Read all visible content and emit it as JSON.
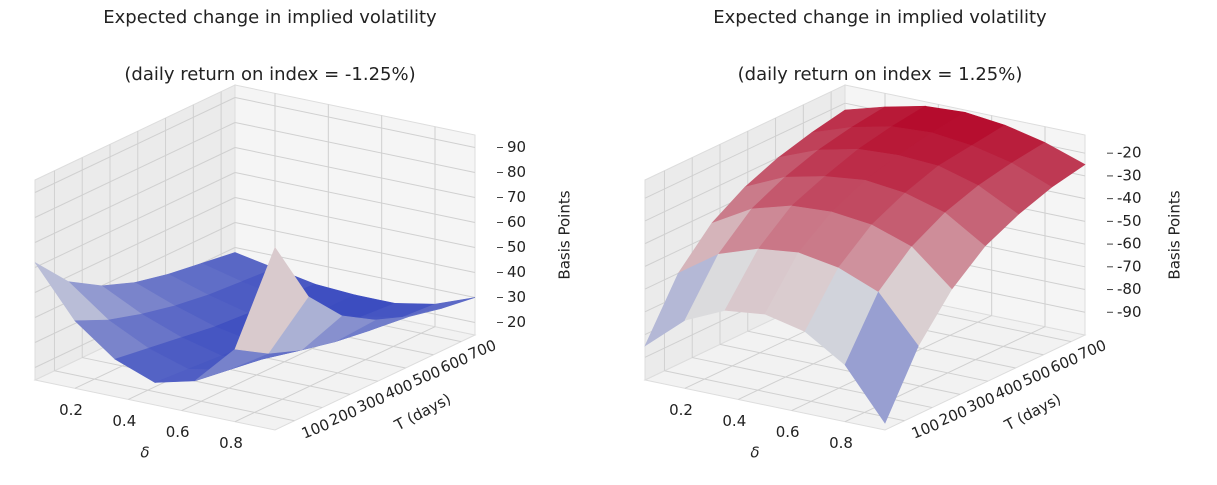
{
  "chart_data": [
    {
      "type": "surface3d",
      "title": "Expected change in implied volatility",
      "subtitle": "(daily return on index = -1.25%)",
      "xlabel": "δ",
      "ylabel": "T (days)",
      "zlabel": "Basis Points",
      "x": [
        0.05,
        0.2,
        0.35,
        0.5,
        0.65,
        0.8,
        0.95
      ],
      "y": [
        30,
        150,
        270,
        390,
        510,
        630,
        750
      ],
      "z": [
        [
          62,
          42,
          30,
          24,
          28,
          44,
          88
        ],
        [
          48,
          36,
          28,
          23,
          26,
          36,
          62
        ],
        [
          40,
          32,
          26,
          22,
          24,
          31,
          48
        ],
        [
          35,
          29,
          24,
          21,
          23,
          28,
          40
        ],
        [
          32,
          27,
          23,
          21,
          22,
          26,
          35
        ],
        [
          30,
          26,
          23,
          21,
          22,
          25,
          32
        ],
        [
          28,
          25,
          22,
          21,
          21,
          24,
          30
        ]
      ],
      "xlim": [
        0.05,
        0.95
      ],
      "ylim": [
        30,
        750
      ],
      "zlim": [
        15,
        95
      ],
      "xticks": [
        0.2,
        0.4,
        0.6,
        0.8
      ],
      "yticks": [
        100,
        200,
        300,
        400,
        500,
        600,
        700
      ],
      "zticks": [
        20,
        30,
        40,
        50,
        60,
        70,
        80,
        90
      ],
      "cmap": "coolwarm",
      "grid": true
    },
    {
      "type": "surface3d",
      "title": "Expected change in implied volatility",
      "subtitle": "(daily return on index = 1.25%)",
      "xlabel": "δ",
      "ylabel": "T (days)",
      "zlabel": "Basis Points",
      "x": [
        0.05,
        0.2,
        0.35,
        0.5,
        0.65,
        0.8,
        0.95
      ],
      "y": [
        30,
        150,
        270,
        390,
        510,
        630,
        750
      ],
      "z": [
        [
          -85,
          -70,
          -62,
          -60,
          -64,
          -75,
          -97
        ],
        [
          -60,
          -48,
          -42,
          -40,
          -43,
          -50,
          -70
        ],
        [
          -45,
          -35,
          -30,
          -29,
          -31,
          -37,
          -52
        ],
        [
          -36,
          -28,
          -24,
          -22,
          -24,
          -29,
          -40
        ],
        [
          -30,
          -23,
          -19,
          -18,
          -19,
          -24,
          -33
        ],
        [
          -26,
          -20,
          -16,
          -15,
          -17,
          -21,
          -28
        ],
        [
          -23,
          -18,
          -14,
          -13,
          -15,
          -19,
          -25
        ]
      ],
      "xlim": [
        0.05,
        0.95
      ],
      "ylim": [
        30,
        750
      ],
      "zlim": [
        -100,
        -12
      ],
      "xticks": [
        0.2,
        0.4,
        0.6,
        0.8
      ],
      "yticks": [
        100,
        200,
        300,
        400,
        500,
        600,
        700
      ],
      "zticks": [
        -90,
        -80,
        -70,
        -60,
        -50,
        -40,
        -30,
        -20
      ],
      "cmap": "coolwarm",
      "grid": true
    }
  ]
}
